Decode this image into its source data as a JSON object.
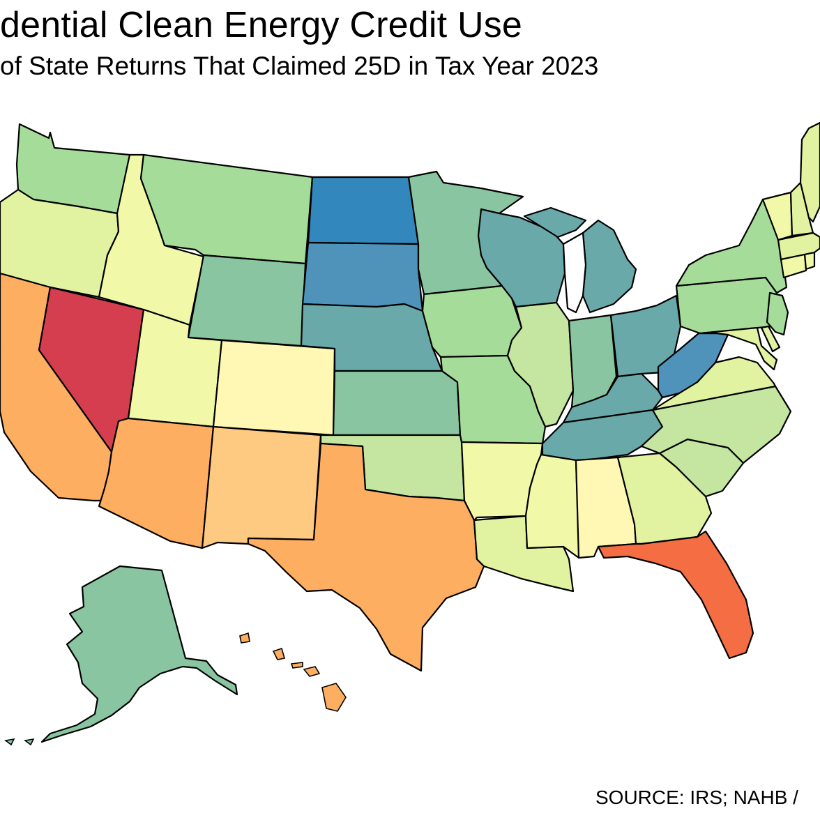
{
  "title": "dential Clean Energy Credit Use",
  "subtitle": "of State Returns That Claimed 25D in Tax Year 2023",
  "source": "SOURCE: IRS; NAHB /",
  "palette": {
    "c1": "#d53e4f",
    "c2": "#f46d43",
    "c3": "#fdae61",
    "c4": "#fec980",
    "c5": "#fff8b5",
    "c6": "#f1f9a9",
    "c7": "#e1f3a0",
    "c8": "#c4e6a0",
    "c9": "#a6dc9a",
    "c10": "#89c5a0",
    "c11": "#6aa9a9",
    "c12": "#4f93ba",
    "c13": "#3288bd",
    "border": "#000000"
  },
  "states": [
    {
      "abbr": "WA",
      "tier": "c9"
    },
    {
      "abbr": "OR",
      "tier": "c7"
    },
    {
      "abbr": "CA",
      "tier": "c3"
    },
    {
      "abbr": "NV",
      "tier": "c1"
    },
    {
      "abbr": "ID",
      "tier": "c6"
    },
    {
      "abbr": "MT",
      "tier": "c9"
    },
    {
      "abbr": "WY",
      "tier": "c10"
    },
    {
      "abbr": "UT",
      "tier": "c6"
    },
    {
      "abbr": "CO",
      "tier": "c5"
    },
    {
      "abbr": "AZ",
      "tier": "c3"
    },
    {
      "abbr": "NM",
      "tier": "c4"
    },
    {
      "abbr": "ND",
      "tier": "c13"
    },
    {
      "abbr": "SD",
      "tier": "c12"
    },
    {
      "abbr": "NE",
      "tier": "c11"
    },
    {
      "abbr": "KS",
      "tier": "c10"
    },
    {
      "abbr": "OK",
      "tier": "c8"
    },
    {
      "abbr": "TX",
      "tier": "c3"
    },
    {
      "abbr": "MN",
      "tier": "c10"
    },
    {
      "abbr": "IA",
      "tier": "c9"
    },
    {
      "abbr": "MO",
      "tier": "c9"
    },
    {
      "abbr": "AR",
      "tier": "c6"
    },
    {
      "abbr": "LA",
      "tier": "c7"
    },
    {
      "abbr": "WI",
      "tier": "c11"
    },
    {
      "abbr": "IL",
      "tier": "c8"
    },
    {
      "abbr": "MI",
      "tier": "c11"
    },
    {
      "abbr": "IN",
      "tier": "c10"
    },
    {
      "abbr": "OH",
      "tier": "c11"
    },
    {
      "abbr": "KY",
      "tier": "c11"
    },
    {
      "abbr": "TN",
      "tier": "c11"
    },
    {
      "abbr": "MS",
      "tier": "c6"
    },
    {
      "abbr": "AL",
      "tier": "c5"
    },
    {
      "abbr": "GA",
      "tier": "c7"
    },
    {
      "abbr": "FL",
      "tier": "c2"
    },
    {
      "abbr": "SC",
      "tier": "c8"
    },
    {
      "abbr": "NC",
      "tier": "c8"
    },
    {
      "abbr": "VA",
      "tier": "c7"
    },
    {
      "abbr": "WV",
      "tier": "c12"
    },
    {
      "abbr": "PA",
      "tier": "c9"
    },
    {
      "abbr": "NY",
      "tier": "c9"
    },
    {
      "abbr": "MD",
      "tier": "c7"
    },
    {
      "abbr": "DE",
      "tier": "c7"
    },
    {
      "abbr": "NJ",
      "tier": "c9"
    },
    {
      "abbr": "CT",
      "tier": "c6"
    },
    {
      "abbr": "RI",
      "tier": "c6"
    },
    {
      "abbr": "MA",
      "tier": "c7"
    },
    {
      "abbr": "VT",
      "tier": "c6"
    },
    {
      "abbr": "NH",
      "tier": "c7"
    },
    {
      "abbr": "ME",
      "tier": "c7"
    },
    {
      "abbr": "AK",
      "tier": "c10"
    },
    {
      "abbr": "HI",
      "tier": "c3"
    }
  ]
}
